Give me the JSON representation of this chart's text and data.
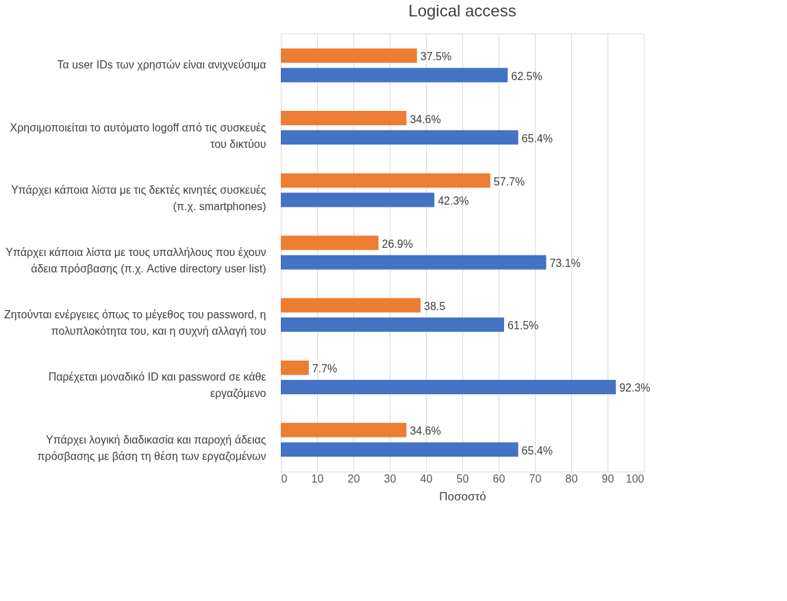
{
  "chart_data": {
    "type": "bar",
    "orientation": "horizontal",
    "title": "Logical access",
    "xlabel": "Ποσοστό",
    "categories": [
      "Τα user IDs των χρηστών είναι ανιχνεύσιμα",
      "Χρησιμοποιείται το αυτόματο logoff από τις συσκευές του δικτύου",
      "Υπάρχει κάποια λίστα με τις δεκτές κινητές συσκευές (π.χ. smartphones)",
      "Υπάρχει κάποια λίστα με τους υπαλλήλους που έχουν άδεια πρόσβασης (π.χ. Active directory user list)",
      "Ζητούνται ενέργειες όπως το μέγεθος του password, η πολυπλοκότητα του, και η συχνή αλλαγή του",
      "Παρέχεται μοναδικό ID και password σε κάθε εργαζόμενο",
      "Υπάρχει λογική διαδικασία και παροχή άδειας πρόσβασης με βάση τη θέση των εργαζομένων"
    ],
    "series": [
      {
        "color": "#ed7d31",
        "values": [
          37.5,
          34.6,
          57.7,
          26.9,
          38.5,
          7.7,
          34.6
        ],
        "value_labels": [
          "37.5%",
          "34.6%",
          "57.7%",
          "26.9%",
          "38.5",
          "7.7%",
          "34.6%"
        ]
      },
      {
        "color": "#4472c4",
        "values": [
          62.5,
          65.4,
          42.3,
          73.1,
          61.5,
          92.3,
          65.4
        ],
        "value_labels": [
          "62.5%",
          "65.4%",
          "42.3%",
          "73.1%",
          "61.5%",
          "92.3%",
          "65.4%"
        ]
      }
    ],
    "xlim": [
      0,
      100
    ],
    "xticks": [
      0,
      10,
      20,
      30,
      40,
      50,
      60,
      70,
      80,
      90,
      100
    ],
    "grid": "x",
    "legend": false
  }
}
